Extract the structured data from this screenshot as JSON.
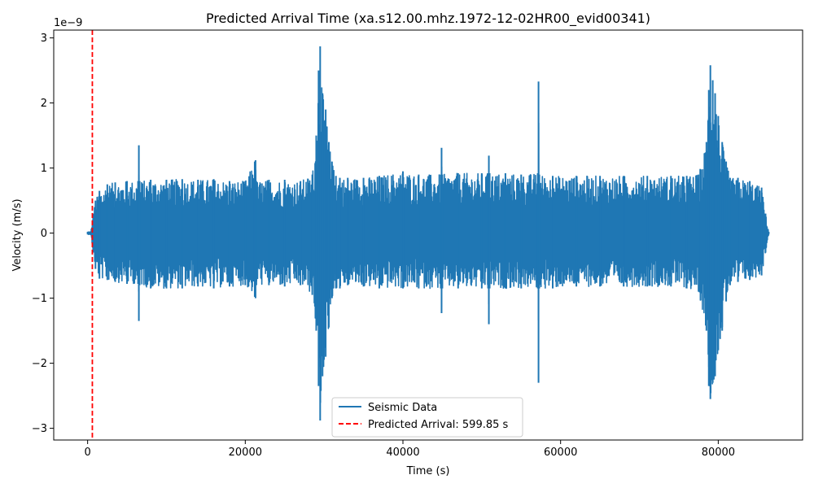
{
  "chart_data": {
    "type": "line",
    "title": "Predicted Arrival Time (xa.s12.00.mhz.1972-12-02HR00_evid00341)",
    "xlabel": "Time (s)",
    "ylabel": "Velocity (m/s)",
    "y_offset_text": "1e−9",
    "xlim": [
      -4300,
      90700
    ],
    "ylim": [
      -3.18,
      3.12
    ],
    "y_scale_factor": 1e-09,
    "xticks": [
      0,
      20000,
      40000,
      60000,
      80000
    ],
    "xtick_labels": [
      "0",
      "20000",
      "40000",
      "60000",
      "80000"
    ],
    "yticks": [
      -3,
      -2,
      -1,
      0,
      1,
      2,
      3
    ],
    "ytick_labels": [
      "−3",
      "−2",
      "−1",
      "0",
      "1",
      "2",
      "3"
    ],
    "grid": false,
    "legend_position": "bottom-center",
    "series": [
      {
        "name": "Seismic Data",
        "color": "#1f77b4",
        "style": "solid",
        "envelope": {
          "x": [
            0,
            400,
            700,
            1000,
            1500,
            2500,
            3500,
            5000,
            6400,
            6500,
            6600,
            8000,
            10000,
            12000,
            14000,
            16000,
            18000,
            20000,
            21200,
            21300,
            21400,
            23000,
            25000,
            27000,
            28500,
            29000,
            29300,
            29500,
            29800,
            30200,
            30600,
            31000,
            31500,
            32000,
            33000,
            35000,
            37000,
            40000,
            42000,
            44800,
            44900,
            45000,
            47000,
            50000,
            50800,
            50900,
            51000,
            53000,
            55000,
            57100,
            57200,
            57300,
            59000,
            62000,
            65000,
            68000,
            71000,
            74000,
            76000,
            77500,
            78500,
            78800,
            79000,
            79300,
            79600,
            80000,
            80500,
            81000,
            81500,
            82500,
            84000,
            85500,
            86000,
            86400
          ],
          "upper": [
            0.02,
            0.02,
            0.3,
            0.5,
            0.65,
            0.75,
            0.78,
            0.8,
            0.8,
            1.35,
            0.8,
            0.82,
            0.82,
            0.83,
            0.82,
            0.83,
            0.8,
            0.8,
            1.1,
            1.12,
            0.8,
            0.82,
            0.82,
            0.8,
            0.9,
            1.5,
            2.5,
            2.87,
            2.15,
            1.9,
            1.4,
            1.1,
            0.88,
            0.85,
            0.85,
            0.85,
            0.88,
            0.95,
            0.9,
            0.9,
            1.31,
            0.9,
            0.92,
            0.92,
            0.92,
            1.19,
            0.92,
            0.92,
            0.9,
            0.92,
            2.33,
            0.9,
            0.88,
            0.88,
            0.88,
            0.88,
            0.88,
            0.88,
            0.88,
            0.9,
            1.4,
            2.2,
            2.58,
            2.35,
            2.15,
            1.8,
            1.4,
            1.1,
            0.85,
            0.85,
            0.8,
            0.7,
            0.3,
            0.02
          ],
          "lower": [
            -0.02,
            -0.02,
            -0.3,
            -0.55,
            -0.7,
            -0.72,
            -0.75,
            -0.78,
            -0.78,
            -1.35,
            -0.8,
            -0.85,
            -0.85,
            -0.85,
            -0.82,
            -0.85,
            -0.82,
            -0.8,
            -0.98,
            -1.0,
            -0.8,
            -0.8,
            -0.82,
            -0.8,
            -0.95,
            -1.5,
            -2.35,
            -2.88,
            -2.2,
            -1.9,
            -1.45,
            -1.0,
            -0.85,
            -0.85,
            -0.8,
            -0.82,
            -0.85,
            -0.85,
            -0.85,
            -0.85,
            -1.23,
            -0.85,
            -0.85,
            -0.85,
            -0.85,
            -1.4,
            -0.85,
            -0.85,
            -0.85,
            -0.85,
            -2.3,
            -0.85,
            -0.85,
            -0.82,
            -0.82,
            -0.82,
            -0.82,
            -0.82,
            -0.85,
            -0.9,
            -1.5,
            -2.35,
            -2.55,
            -2.3,
            -2.2,
            -1.8,
            -1.5,
            -1.05,
            -0.8,
            -0.75,
            -0.72,
            -0.65,
            -0.3,
            -0.02
          ]
        }
      },
      {
        "name": "Predicted Arrival: 599.85 s",
        "color": "#ff0000",
        "style": "dashed",
        "x": 599.85
      }
    ]
  }
}
